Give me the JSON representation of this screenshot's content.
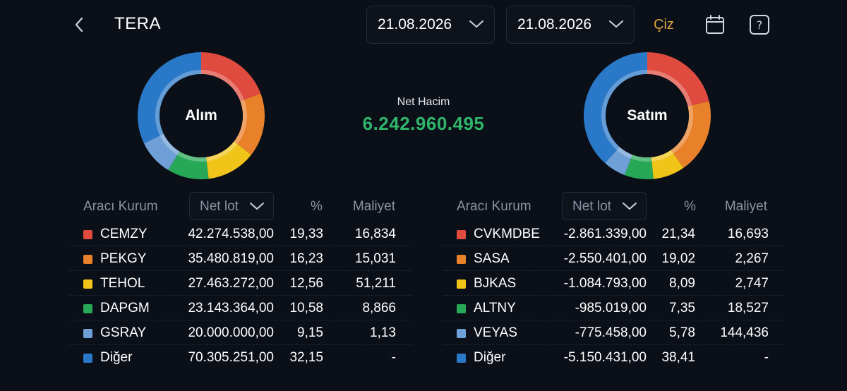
{
  "header": {
    "title": "TERA",
    "start_date": "21.08.2026",
    "end_date": "21.08.2026",
    "draw_label": "Çiz"
  },
  "colors": {
    "background": "#0b0f17",
    "accent_gold": "#d9a441",
    "positive_green": "#2fb56b",
    "seg_red": "#e04b3f",
    "seg_orange": "#e9812a",
    "seg_yellow": "#f0c419",
    "seg_green": "#27a857",
    "seg_lightblue": "#6e9fd6",
    "seg_blue": "#2a78c8"
  },
  "summary": {
    "net_volume_label": "Net Hacim",
    "net_volume_value": "6.242.960.495"
  },
  "buy": {
    "donut_label": "Alım",
    "headers": {
      "broker": "Aracı Kurum",
      "dropdown": "Net lot",
      "pct": "%",
      "cost": "Maliyet"
    },
    "rows": [
      {
        "name": "CEMZY",
        "lot": "42.274.538,00",
        "pct": "19,33",
        "cost": "16,834",
        "color": "#e04b3f",
        "share": 19.33
      },
      {
        "name": "PEKGY",
        "lot": "35.480.819,00",
        "pct": "16,23",
        "cost": "15,031",
        "color": "#e9812a",
        "share": 16.23
      },
      {
        "name": "TEHOL",
        "lot": "27.463.272,00",
        "pct": "12,56",
        "cost": "51,211",
        "color": "#f0c419",
        "share": 12.56
      },
      {
        "name": "DAPGM",
        "lot": "23.143.364,00",
        "pct": "10,58",
        "cost": "8,866",
        "color": "#27a857",
        "share": 10.58
      },
      {
        "name": "GSRAY",
        "lot": "20.000.000,00",
        "pct": "9,15",
        "cost": "1,13",
        "color": "#6e9fd6",
        "share": 9.15
      },
      {
        "name": "Diğer",
        "lot": "70.305.251,00",
        "pct": "32,15",
        "cost": "-",
        "color": "#2a78c8",
        "share": 32.15
      }
    ]
  },
  "sell": {
    "donut_label": "Satım",
    "headers": {
      "broker": "Aracı Kurum",
      "dropdown": "Net lot",
      "pct": "%",
      "cost": "Maliyet"
    },
    "rows": [
      {
        "name": "CVKMDBE",
        "lot": "-2.861.339,00",
        "pct": "21,34",
        "cost": "16,693",
        "color": "#e04b3f",
        "share": 21.34
      },
      {
        "name": "SASA",
        "lot": "-2.550.401,00",
        "pct": "19,02",
        "cost": "2,267",
        "color": "#e9812a",
        "share": 19.02
      },
      {
        "name": "BJKAS",
        "lot": "-1.084.793,00",
        "pct": "8,09",
        "cost": "2,747",
        "color": "#f0c419",
        "share": 8.09
      },
      {
        "name": "ALTNY",
        "lot": "-985.019,00",
        "pct": "7,35",
        "cost": "18,527",
        "color": "#27a857",
        "share": 7.35
      },
      {
        "name": "VEYAS",
        "lot": "-775.458,00",
        "pct": "5,78",
        "cost": "144,436",
        "color": "#6e9fd6",
        "share": 5.78
      },
      {
        "name": "Diğer",
        "lot": "-5.150.431,00",
        "pct": "38,41",
        "cost": "-",
        "color": "#2a78c8",
        "share": 38.41
      }
    ]
  }
}
